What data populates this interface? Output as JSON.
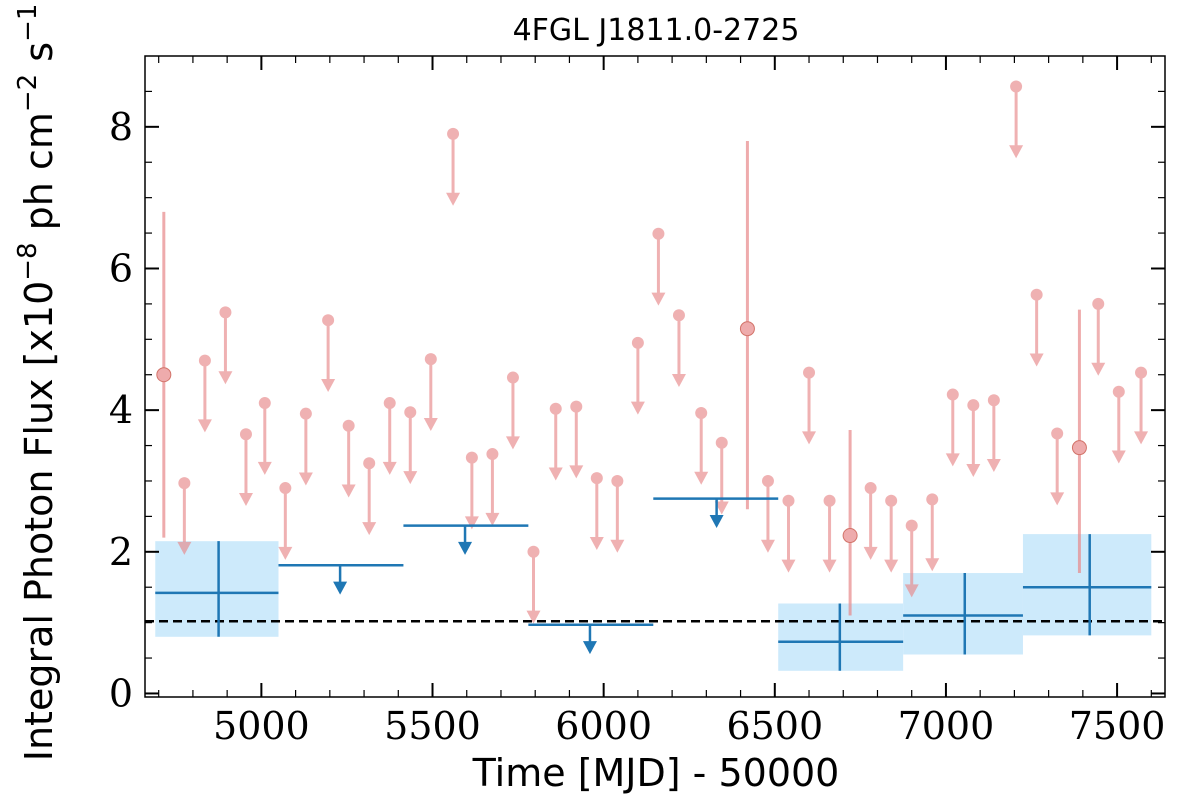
{
  "chart_data": {
    "type": "scatter",
    "title": "4FGL J1811.0-2725",
    "xlabel": "Time [MJD] - 50000",
    "ylabel_parts": {
      "main": "Integral Photon Flux [x10",
      "exp1": "−8",
      "mid": " ph cm",
      "exp2": "−2",
      "mid2": " s",
      "exp3": "−1",
      "end": "]"
    },
    "xlim": [
      4660,
      7640
    ],
    "ylim": [
      -0.05,
      9.0
    ],
    "xticks": [
      5000,
      5500,
      6000,
      6500,
      7000,
      7500
    ],
    "xtick_labels": [
      "5000",
      "5500",
      "6000",
      "6500",
      "7000",
      "7500"
    ],
    "yticks": [
      0,
      2,
      4,
      6,
      8
    ],
    "ytick_labels": [
      "0",
      "2",
      "4",
      "6",
      "8"
    ],
    "reference_line": {
      "y": 1.02,
      "style": "dashed",
      "color": "#000000"
    },
    "colors": {
      "short_bins": "#e8888a",
      "long_bins": "#1f77b4",
      "long_bins_band": "#cdeafb"
    },
    "short_bins": {
      "detections": [
        {
          "x": 4715,
          "y": 4.5,
          "ylo": 2.2,
          "yhi": 6.8
        },
        {
          "x": 6420,
          "y": 5.15,
          "ylo": 2.6,
          "yhi": 7.8
        },
        {
          "x": 6720,
          "y": 2.23,
          "ylo": 1.1,
          "yhi": 3.72
        },
        {
          "x": 7390,
          "y": 3.47,
          "ylo": 1.7,
          "yhi": 5.42
        }
      ],
      "upper_limits": [
        {
          "x": 4775,
          "y": 2.97
        },
        {
          "x": 4835,
          "y": 4.7
        },
        {
          "x": 4895,
          "y": 5.38
        },
        {
          "x": 4955,
          "y": 3.66
        },
        {
          "x": 5010,
          "y": 4.1
        },
        {
          "x": 5070,
          "y": 2.9
        },
        {
          "x": 5130,
          "y": 3.95
        },
        {
          "x": 5195,
          "y": 5.27
        },
        {
          "x": 5255,
          "y": 3.78
        },
        {
          "x": 5315,
          "y": 3.25
        },
        {
          "x": 5375,
          "y": 4.1
        },
        {
          "x": 5435,
          "y": 3.97
        },
        {
          "x": 5495,
          "y": 4.72
        },
        {
          "x": 5560,
          "y": 7.9
        },
        {
          "x": 5615,
          "y": 3.33
        },
        {
          "x": 5675,
          "y": 3.38
        },
        {
          "x": 5735,
          "y": 4.46
        },
        {
          "x": 5795,
          "y": 2.0
        },
        {
          "x": 5860,
          "y": 4.02
        },
        {
          "x": 5920,
          "y": 4.05
        },
        {
          "x": 5980,
          "y": 3.04
        },
        {
          "x": 6040,
          "y": 3.0
        },
        {
          "x": 6100,
          "y": 4.95
        },
        {
          "x": 6160,
          "y": 6.49
        },
        {
          "x": 6220,
          "y": 5.34
        },
        {
          "x": 6285,
          "y": 3.96
        },
        {
          "x": 6345,
          "y": 3.54
        },
        {
          "x": 6480,
          "y": 3.0
        },
        {
          "x": 6540,
          "y": 2.72
        },
        {
          "x": 6600,
          "y": 4.53
        },
        {
          "x": 6660,
          "y": 2.72
        },
        {
          "x": 6780,
          "y": 2.9
        },
        {
          "x": 6840,
          "y": 2.72
        },
        {
          "x": 6900,
          "y": 2.37
        },
        {
          "x": 6960,
          "y": 2.74
        },
        {
          "x": 7020,
          "y": 4.22
        },
        {
          "x": 7080,
          "y": 4.07
        },
        {
          "x": 7140,
          "y": 4.14
        },
        {
          "x": 7205,
          "y": 8.57
        },
        {
          "x": 7265,
          "y": 5.63
        },
        {
          "x": 7325,
          "y": 3.67
        },
        {
          "x": 7445,
          "y": 5.5
        },
        {
          "x": 7505,
          "y": 4.26
        },
        {
          "x": 7570,
          "y": 4.53
        }
      ]
    },
    "long_bins": {
      "detections": [
        {
          "x": 4875,
          "xlo": 4690,
          "xhi": 5050,
          "y": 1.42,
          "ylo": 0.8,
          "yhi": 2.15
        },
        {
          "x": 6690,
          "xlo": 6510,
          "xhi": 6875,
          "y": 0.73,
          "ylo": 0.32,
          "yhi": 1.27
        },
        {
          "x": 7055,
          "xlo": 6875,
          "xhi": 7225,
          "y": 1.1,
          "ylo": 0.55,
          "yhi": 1.7
        },
        {
          "x": 7420,
          "xlo": 7225,
          "xhi": 7600,
          "y": 1.5,
          "ylo": 0.82,
          "yhi": 2.25
        }
      ],
      "upper_limits": [
        {
          "x": 5230,
          "xlo": 5050,
          "xhi": 5415,
          "y": 1.81
        },
        {
          "x": 5595,
          "xlo": 5415,
          "xhi": 5780,
          "y": 2.37
        },
        {
          "x": 5960,
          "xlo": 5780,
          "xhi": 6145,
          "y": 0.97
        },
        {
          "x": 6330,
          "xlo": 6145,
          "xhi": 6510,
          "y": 2.75
        }
      ]
    }
  }
}
